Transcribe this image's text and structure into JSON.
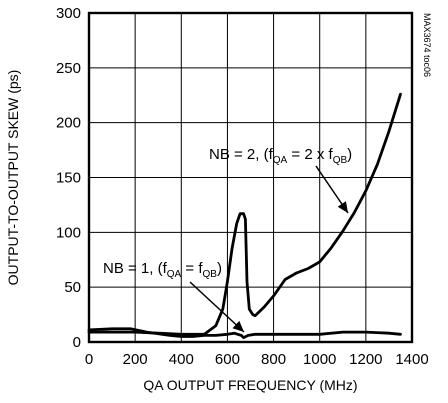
{
  "chart_data": {
    "type": "line",
    "title": "",
    "xlabel": "QA OUTPUT FREQUENCY (MHz)",
    "ylabel": "OUTPUT-TO-OUTPUT SKEW (ps)",
    "xlim": [
      0,
      1400
    ],
    "ylim": [
      0,
      300
    ],
    "x_ticks": [
      "0",
      "200",
      "400",
      "600",
      "800",
      "1000",
      "1200",
      "1400"
    ],
    "y_ticks": [
      "0",
      "50",
      "100",
      "150",
      "200",
      "250",
      "300"
    ],
    "grid": true,
    "figure_id": "MAX3674 toc06",
    "series": [
      {
        "label_parts": [
          "NB = 2, (f",
          "QA",
          " = 2 x f",
          "QB",
          ")"
        ],
        "points": [
          [
            0,
            9
          ],
          [
            100,
            9
          ],
          [
            200,
            9
          ],
          [
            300,
            8
          ],
          [
            400,
            7
          ],
          [
            500,
            7
          ],
          [
            550,
            15
          ],
          [
            580,
            30
          ],
          [
            600,
            55
          ],
          [
            620,
            85
          ],
          [
            640,
            108
          ],
          [
            655,
            117
          ],
          [
            670,
            117
          ],
          [
            678,
            112
          ],
          [
            685,
            55
          ],
          [
            695,
            30
          ],
          [
            710,
            25
          ],
          [
            720,
            24
          ],
          [
            760,
            32
          ],
          [
            800,
            42
          ],
          [
            850,
            57
          ],
          [
            900,
            63
          ],
          [
            950,
            67
          ],
          [
            1000,
            73
          ],
          [
            1050,
            86
          ],
          [
            1100,
            101
          ],
          [
            1150,
            118
          ],
          [
            1200,
            138
          ],
          [
            1250,
            162
          ],
          [
            1300,
            192
          ],
          [
            1350,
            226
          ]
        ]
      },
      {
        "label_parts": [
          "NB = 1, (f",
          "QA",
          " = f",
          "QB",
          ")"
        ],
        "points": [
          [
            0,
            11
          ],
          [
            100,
            12
          ],
          [
            180,
            12
          ],
          [
            250,
            9
          ],
          [
            350,
            6
          ],
          [
            400,
            5
          ],
          [
            450,
            5
          ],
          [
            500,
            6
          ],
          [
            550,
            6
          ],
          [
            600,
            7
          ],
          [
            630,
            8
          ],
          [
            660,
            6
          ],
          [
            670,
            4
          ],
          [
            690,
            6
          ],
          [
            720,
            7
          ],
          [
            800,
            7
          ],
          [
            900,
            7
          ],
          [
            1000,
            7
          ],
          [
            1100,
            9
          ],
          [
            1200,
            9
          ],
          [
            1300,
            8
          ],
          [
            1350,
            7
          ]
        ]
      }
    ]
  }
}
